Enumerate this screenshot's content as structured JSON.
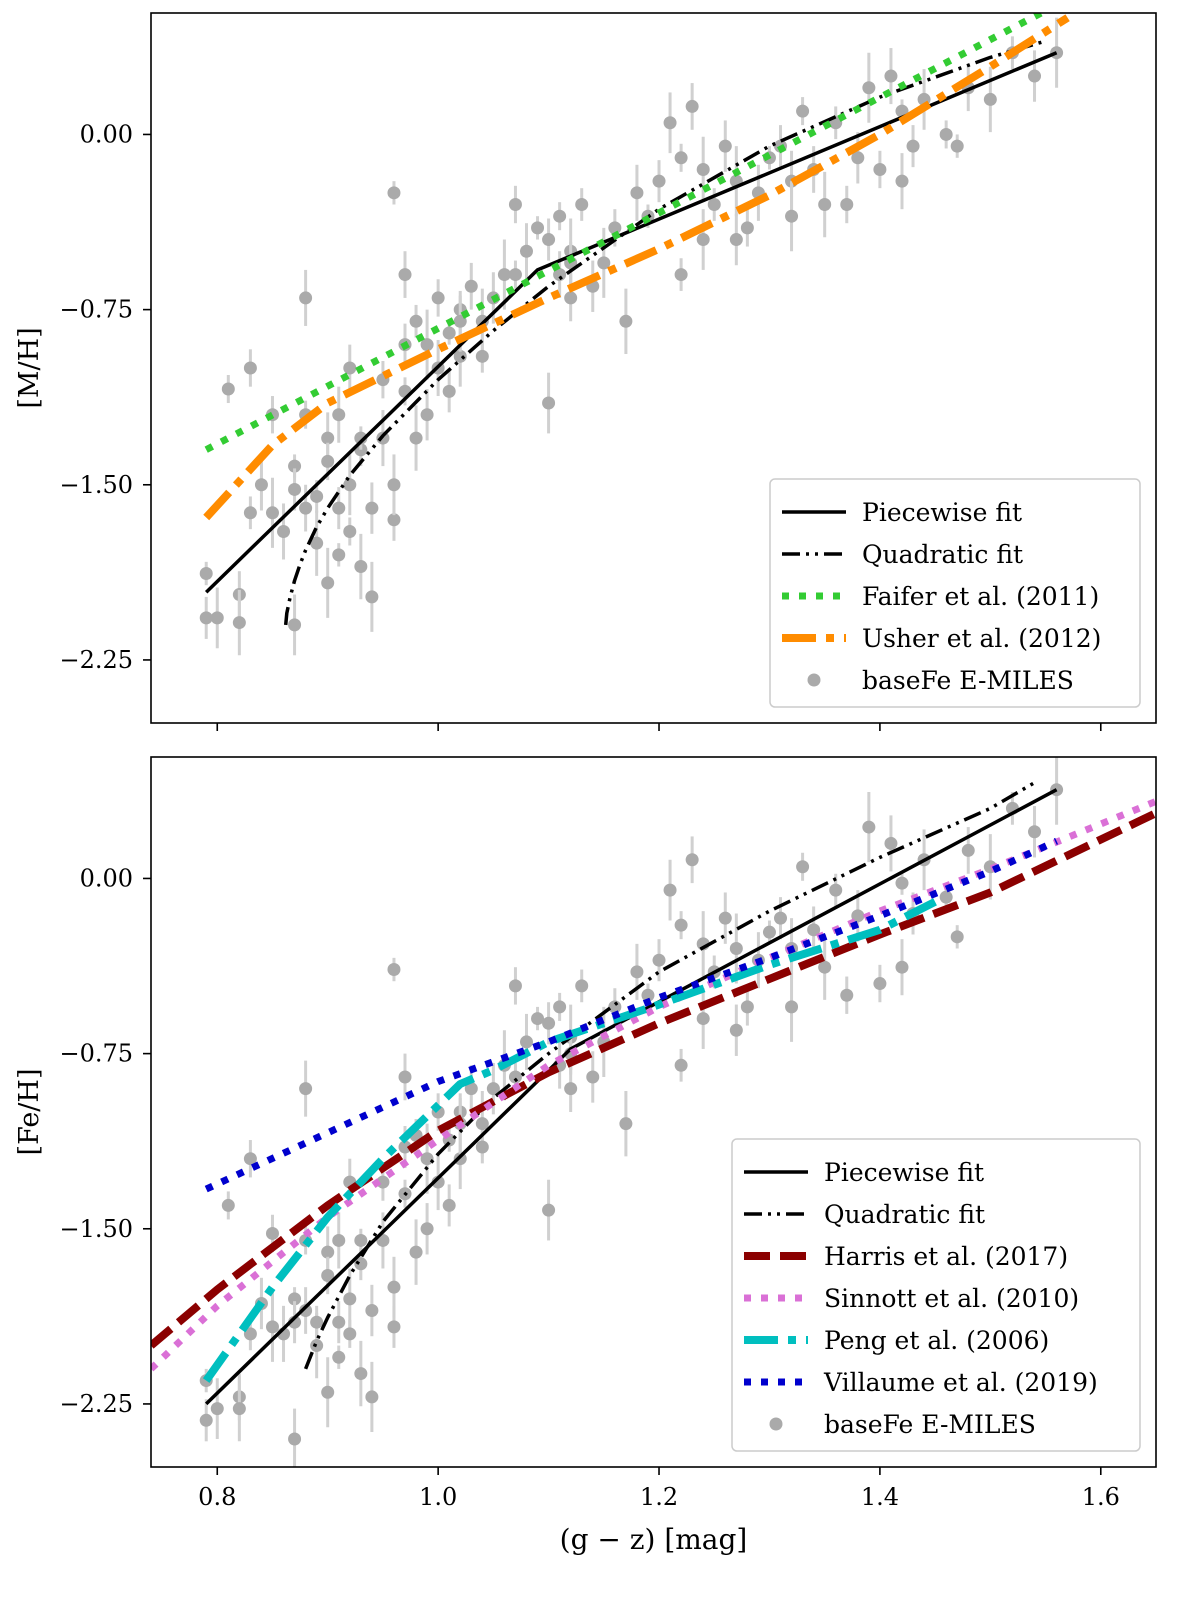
{
  "chart_data": [
    {
      "type": "scatter",
      "panel": "top",
      "ylabel": "[M/H]",
      "xlabel": "",
      "xlim": [
        0.74,
        1.65
      ],
      "ylim": [
        -2.52,
        0.52
      ],
      "xticks": [
        0.8,
        1.0,
        1.2,
        1.4,
        1.6
      ],
      "xtick_labels": [
        "",
        "",
        "",
        "",
        ""
      ],
      "yticks": [
        0.0,
        -0.75,
        -1.5,
        -2.25
      ],
      "ytick_labels": [
        "0.00",
        "−0.75",
        "−1.50",
        "−2.25"
      ],
      "legend_position": "lower-right",
      "series": [
        {
          "name": "Piecewise fit",
          "kind": "line",
          "color": "#000000",
          "style": "solid",
          "x": [
            0.79,
            1.09,
            1.56
          ],
          "y": [
            -1.96,
            -0.58,
            0.35
          ]
        },
        {
          "name": "Quadratic fit",
          "kind": "line",
          "color": "#000000",
          "style": "dashdotdot",
          "x": [
            0.862,
            0.863,
            0.866,
            0.87,
            0.875,
            0.88,
            0.89,
            0.9,
            0.92,
            0.95,
            1.0,
            1.05,
            1.1,
            1.2,
            1.3,
            1.4,
            1.5,
            1.55
          ],
          "y": [
            -2.1,
            -2.05,
            -1.98,
            -1.91,
            -1.84,
            -1.78,
            -1.68,
            -1.6,
            -1.46,
            -1.29,
            -1.05,
            -0.84,
            -0.65,
            -0.32,
            -0.05,
            0.16,
            0.33,
            0.4
          ]
        },
        {
          "name": "Faifer et al. (2011)",
          "kind": "line",
          "color": "#33cc33",
          "style": "dotted",
          "x": [
            0.79,
            1.55
          ],
          "y": [
            -1.35,
            0.53
          ]
        },
        {
          "name": "Usher et al. (2012)",
          "kind": "line",
          "color": "#ff8c00",
          "style": "dashdot",
          "x": [
            0.79,
            0.85,
            0.9,
            1.0,
            1.1,
            1.2,
            1.3,
            1.4,
            1.5,
            1.57
          ],
          "y": [
            -1.64,
            -1.33,
            -1.15,
            -0.92,
            -0.7,
            -0.49,
            -0.26,
            0.0,
            0.29,
            0.5
          ]
        },
        {
          "name": "baseFe E-MILES",
          "kind": "scatter",
          "color": "#aaaaaa",
          "x": [
            0.79,
            0.79,
            0.8,
            0.81,
            0.82,
            0.82,
            0.83,
            0.84,
            0.85,
            0.85,
            0.86,
            0.87,
            0.87,
            0.87,
            0.88,
            0.88,
            0.89,
            0.89,
            0.9,
            0.9,
            0.9,
            0.91,
            0.91,
            0.91,
            0.92,
            0.92,
            0.92,
            0.93,
            0.93,
            0.94,
            0.94,
            0.95,
            0.95,
            0.96,
            0.96,
            0.96,
            0.97,
            0.97,
            0.98,
            0.98,
            0.99,
            0.99,
            1.0,
            1.0,
            1.01,
            1.01,
            1.02,
            1.02,
            1.03,
            1.04,
            1.04,
            1.05,
            1.06,
            1.07,
            1.08,
            1.09,
            1.1,
            1.1,
            1.11,
            1.11,
            1.12,
            1.13,
            1.14,
            1.15,
            1.16,
            1.18,
            1.19,
            1.2,
            1.21,
            1.22,
            1.23,
            1.24,
            1.25,
            1.26,
            1.27,
            1.28,
            1.29,
            1.3,
            1.31,
            1.32,
            1.33,
            1.34,
            1.35,
            1.36,
            1.38,
            1.39,
            1.4,
            1.41,
            1.42,
            1.43,
            1.44,
            1.46,
            1.48,
            1.5,
            1.52,
            1.54,
            1.56,
            0.83,
            0.88,
            0.93,
            0.97,
            1.02,
            1.07,
            1.12,
            1.17,
            1.22,
            1.27,
            1.32,
            1.37,
            1.42,
            1.47,
            1.12,
            1.24
          ],
          "y": [
            -1.88,
            -2.07,
            -2.07,
            -1.09,
            -1.97,
            -2.09,
            -1.62,
            -1.5,
            -1.62,
            -1.2,
            -1.7,
            -1.42,
            -1.52,
            -2.1,
            -1.2,
            -1.6,
            -1.75,
            -1.55,
            -1.3,
            -1.92,
            -1.4,
            -1.2,
            -1.8,
            -1.6,
            -1.5,
            -1.7,
            -1.0,
            -1.85,
            -1.35,
            -1.6,
            -1.98,
            -1.05,
            -1.3,
            -0.25,
            -1.65,
            -1.5,
            -1.1,
            -0.6,
            -1.3,
            -0.8,
            -1.2,
            -0.9,
            -0.7,
            -1.0,
            -0.85,
            -1.1,
            -0.95,
            -0.75,
            -0.65,
            -0.8,
            -0.95,
            -0.7,
            -0.6,
            -0.3,
            -0.5,
            -0.4,
            -0.45,
            -1.15,
            -0.35,
            -0.6,
            -0.5,
            -0.3,
            -0.65,
            -0.55,
            -0.4,
            -0.25,
            -0.35,
            -0.2,
            0.05,
            -0.1,
            0.12,
            -0.15,
            -0.3,
            -0.05,
            -0.2,
            -0.4,
            -0.25,
            -0.1,
            -0.05,
            -0.2,
            0.1,
            -0.15,
            -0.3,
            0.05,
            -0.1,
            0.2,
            -0.15,
            0.25,
            0.1,
            -0.05,
            0.15,
            0.0,
            0.2,
            0.15,
            0.35,
            0.25,
            0.35,
            -1.0,
            -0.7,
            -1.3,
            -0.9,
            -0.8,
            -0.6,
            -0.7,
            -0.8,
            -0.6,
            -0.45,
            -0.35,
            -0.3,
            -0.2,
            -0.05,
            -0.55,
            -0.45
          ]
        }
      ]
    },
    {
      "type": "scatter",
      "panel": "bottom",
      "ylabel": "[Fe/H]",
      "xlabel": "(g − z) [mag]",
      "xlim": [
        0.74,
        1.65
      ],
      "ylim": [
        -2.52,
        0.52
      ],
      "xticks": [
        0.8,
        1.0,
        1.2,
        1.4,
        1.6
      ],
      "xtick_labels": [
        "0.8",
        "1.0",
        "1.2",
        "1.4",
        "1.6"
      ],
      "yticks": [
        0.0,
        -0.75,
        -1.5,
        -2.25
      ],
      "ytick_labels": [
        "0.00",
        "−0.75",
        "−1.50",
        "−2.25"
      ],
      "legend_position": "lower-right",
      "series": [
        {
          "name": "Piecewise fit",
          "kind": "line",
          "color": "#000000",
          "style": "solid",
          "x": [
            0.79,
            1.12,
            1.56
          ],
          "y": [
            -2.25,
            -0.73,
            0.38
          ]
        },
        {
          "name": "Quadratic fit",
          "kind": "line",
          "color": "#000000",
          "style": "dashdotdot",
          "x": [
            0.88,
            0.89,
            0.9,
            0.92,
            0.95,
            1.0,
            1.05,
            1.1,
            1.2,
            1.3,
            1.4,
            1.5,
            1.54
          ],
          "y": [
            -2.1,
            -1.98,
            -1.88,
            -1.7,
            -1.47,
            -1.18,
            -0.94,
            -0.75,
            -0.4,
            -0.14,
            0.09,
            0.3,
            0.41
          ]
        },
        {
          "name": "Harris et al. (2017)",
          "kind": "line",
          "color": "#8b0000",
          "style": "dashed",
          "x": [
            0.74,
            0.8,
            0.9,
            1.0,
            1.1,
            1.2,
            1.3,
            1.4,
            1.5,
            1.65
          ],
          "y": [
            -2.0,
            -1.76,
            -1.4,
            -1.08,
            -0.83,
            -0.62,
            -0.43,
            -0.24,
            -0.06,
            0.28
          ]
        },
        {
          "name": "Sinnott et al. (2010)",
          "kind": "line",
          "color": "#da70d6",
          "style": "dotted",
          "x": [
            0.74,
            0.8,
            0.9,
            1.0,
            1.1,
            1.2,
            1.3,
            1.4,
            1.5,
            1.65
          ],
          "y": [
            -2.1,
            -1.83,
            -1.45,
            -1.12,
            -0.8,
            -0.55,
            -0.34,
            -0.14,
            0.04,
            0.33
          ]
        },
        {
          "name": "Peng et al. (2006)",
          "kind": "line",
          "color": "#00bfbf",
          "style": "dashdot",
          "x": [
            0.79,
            0.85,
            0.9,
            0.95,
            1.02,
            1.05,
            1.1,
            1.2,
            1.3,
            1.4,
            1.45
          ],
          "y": [
            -2.15,
            -1.75,
            -1.45,
            -1.2,
            -0.88,
            -0.82,
            -0.7,
            -0.54,
            -0.37,
            -0.22,
            -0.1
          ]
        },
        {
          "name": "Villaume et al. (2019)",
          "kind": "line",
          "color": "#0000cd",
          "style": "dotted",
          "x": [
            0.79,
            1.0,
            1.1,
            1.2,
            1.3,
            1.4,
            1.5,
            1.56
          ],
          "y": [
            -1.33,
            -0.87,
            -0.7,
            -0.51,
            -0.34,
            -0.16,
            0.03,
            0.16
          ]
        },
        {
          "name": "baseFe E-MILES",
          "kind": "scatter",
          "color": "#aaaaaa",
          "x": [
            0.79,
            0.79,
            0.8,
            0.81,
            0.82,
            0.82,
            0.83,
            0.84,
            0.85,
            0.85,
            0.86,
            0.87,
            0.87,
            0.87,
            0.88,
            0.88,
            0.89,
            0.89,
            0.9,
            0.9,
            0.9,
            0.91,
            0.91,
            0.91,
            0.92,
            0.92,
            0.92,
            0.93,
            0.93,
            0.94,
            0.94,
            0.95,
            0.95,
            0.96,
            0.96,
            0.96,
            0.97,
            0.97,
            0.98,
            0.98,
            0.99,
            0.99,
            1.0,
            1.0,
            1.01,
            1.01,
            1.02,
            1.02,
            1.03,
            1.04,
            1.04,
            1.05,
            1.06,
            1.07,
            1.08,
            1.09,
            1.1,
            1.1,
            1.11,
            1.11,
            1.12,
            1.13,
            1.14,
            1.15,
            1.16,
            1.18,
            1.19,
            1.2,
            1.21,
            1.22,
            1.23,
            1.24,
            1.25,
            1.26,
            1.27,
            1.28,
            1.29,
            1.3,
            1.31,
            1.32,
            1.33,
            1.34,
            1.35,
            1.36,
            1.38,
            1.39,
            1.4,
            1.41,
            1.42,
            1.43,
            1.44,
            1.46,
            1.48,
            1.5,
            1.52,
            1.54,
            1.56,
            0.83,
            0.88,
            0.93,
            0.97,
            1.02,
            1.07,
            1.12,
            1.17,
            1.22,
            1.27,
            1.32,
            1.37,
            1.42,
            1.47,
            1.12,
            1.24
          ],
          "y": [
            -2.15,
            -2.32,
            -2.27,
            -1.4,
            -2.22,
            -2.27,
            -1.95,
            -1.82,
            -1.92,
            -1.52,
            -1.95,
            -1.8,
            -1.9,
            -2.4,
            -1.55,
            -1.85,
            -2.0,
            -1.9,
            -1.6,
            -2.2,
            -1.7,
            -1.55,
            -2.05,
            -1.9,
            -1.8,
            -1.95,
            -1.3,
            -2.12,
            -1.65,
            -1.85,
            -2.22,
            -1.3,
            -1.55,
            -0.39,
            -1.92,
            -1.75,
            -1.35,
            -0.85,
            -1.6,
            -1.1,
            -1.5,
            -1.2,
            -1.0,
            -1.3,
            -1.12,
            -1.4,
            -1.2,
            -1.0,
            -0.9,
            -1.05,
            -1.15,
            -0.9,
            -0.8,
            -0.46,
            -0.7,
            -0.6,
            -0.62,
            -1.42,
            -0.55,
            -0.8,
            -0.68,
            -0.46,
            -0.85,
            -0.7,
            -0.55,
            -0.4,
            -0.5,
            -0.35,
            -0.05,
            -0.2,
            0.08,
            -0.28,
            -0.4,
            -0.17,
            -0.3,
            -0.55,
            -0.35,
            -0.23,
            -0.17,
            -0.3,
            0.05,
            -0.22,
            -0.38,
            -0.05,
            -0.16,
            0.22,
            -0.45,
            0.15,
            -0.02,
            -0.15,
            0.08,
            -0.08,
            0.12,
            0.05,
            0.3,
            0.2,
            0.38,
            -1.2,
            -0.9,
            -1.55,
            -1.15,
            -1.05,
            -0.85,
            -0.9,
            -1.05,
            -0.8,
            -0.65,
            -0.55,
            -0.5,
            -0.38,
            -0.25,
            -0.75,
            -0.6
          ]
        }
      ]
    }
  ]
}
